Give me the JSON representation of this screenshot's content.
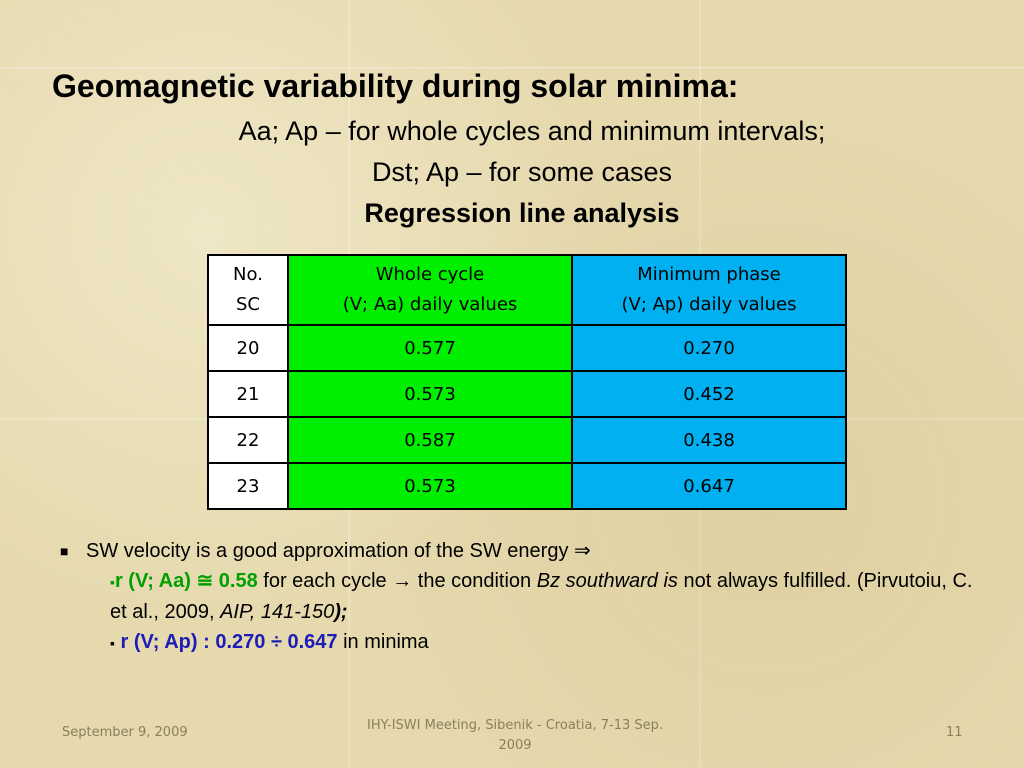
{
  "slide": {
    "title": "Geomagnetic variability during solar minima:",
    "subtitle1": "Aa; Ap – for whole cycles and minimum intervals;",
    "subtitle2": "Dst; Ap – for some cases",
    "subtitle3": "Regression line analysis"
  },
  "table": {
    "headers": [
      {
        "line1": "No.",
        "line2": "SC"
      },
      {
        "line1": "Whole cycle",
        "line2": "(V; Aa) daily values"
      },
      {
        "line1": "Minimum phase",
        "line2": "(V; Ap) daily values"
      }
    ],
    "rows": [
      {
        "sc": "20",
        "whole": "0.577",
        "minimum": "0.270"
      },
      {
        "sc": "21",
        "whole": "0.573",
        "minimum": "0.452"
      },
      {
        "sc": "22",
        "whole": "0.587",
        "minimum": "0.438"
      },
      {
        "sc": "23",
        "whole": "0.573",
        "minimum": "0.647"
      }
    ],
    "colors": {
      "whole": "#00ee00",
      "minimum": "#00b0f0"
    }
  },
  "bullets": {
    "main": "SW velocity is a good approximation of the SW energy ⇒",
    "sub1": {
      "marker": "▪",
      "r_label": "r (V; Aa) ≅ 0.58",
      "text1": " for each cycle  → the condition ",
      "italic": "Bz southward is",
      "text2": " not always fulfilled. (Pirvutoiu, C. et al., 2009, ",
      "citation": "AIP, 141-150",
      "end": ");"
    },
    "sub2": {
      "marker": "▪",
      "r_label": "r (V; Ap) : 0.270 ÷ 0.647",
      "text": " in minima"
    }
  },
  "footer": {
    "date": "September 9, 2009",
    "event": "IHY-ISWI Meeting, Sibenik - Croatia, 7-13 Sep. 2009",
    "page": "11"
  }
}
